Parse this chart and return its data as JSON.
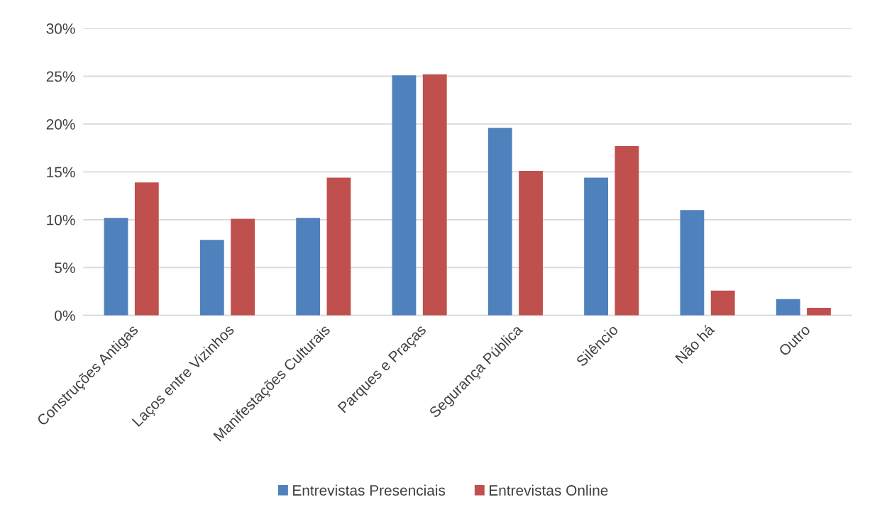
{
  "chart_data": {
    "type": "bar",
    "categories": [
      "Construções Antigas",
      "Laços entre Vizinhos",
      "Manifestações Culturais",
      "Parques e Praças",
      "Segurança Pública",
      "Silêncio",
      "Não há",
      "Outro"
    ],
    "series": [
      {
        "name": "Entrevistas Presenciais",
        "color": "#4f81bd",
        "values": [
          10.2,
          7.9,
          10.2,
          25.1,
          19.6,
          14.4,
          11.0,
          1.7
        ]
      },
      {
        "name": "Entrevistas Online",
        "color": "#c0504d",
        "values": [
          13.9,
          10.1,
          14.4,
          25.2,
          15.1,
          17.7,
          2.6,
          0.8
        ]
      }
    ],
    "ylim": [
      0,
      30
    ],
    "yticks": [
      {
        "value": 0,
        "label": "0%"
      },
      {
        "value": 5,
        "label": "5%"
      },
      {
        "value": 10,
        "label": "10%"
      },
      {
        "value": 15,
        "label": "15%"
      },
      {
        "value": 20,
        "label": "20%"
      },
      {
        "value": 25,
        "label": "25%"
      },
      {
        "value": 30,
        "label": "30%"
      }
    ],
    "grid": "y",
    "legend": "bottom"
  }
}
